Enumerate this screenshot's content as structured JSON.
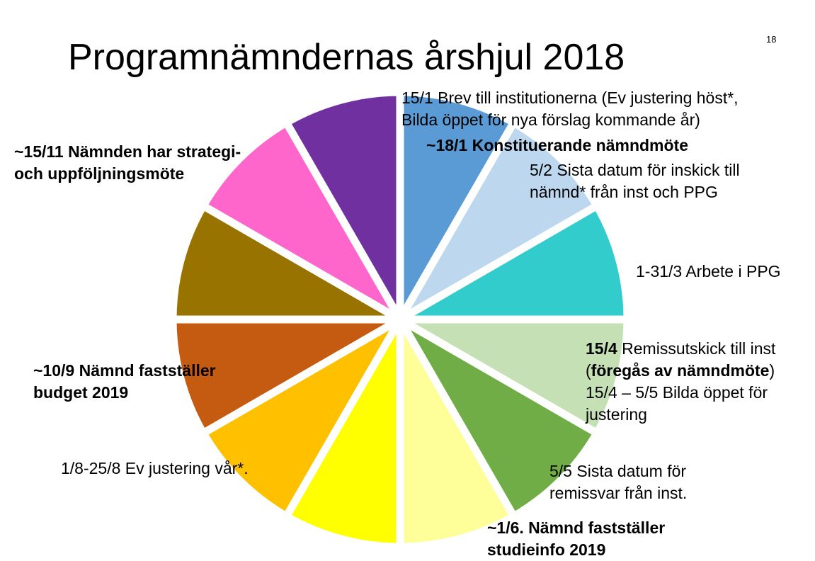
{
  "page_number": "18",
  "title": "Programnämndernas årshjul 2018",
  "wheel": {
    "gap_color": "#ffffff",
    "segments": [
      {
        "name": "segment-jan",
        "color": "#5b9bd5"
      },
      {
        "name": "segment-feb",
        "color": "#bdd7ee"
      },
      {
        "name": "segment-mar",
        "color": "#33cccc"
      },
      {
        "name": "segment-apr",
        "color": "#c5e0b4"
      },
      {
        "name": "segment-may",
        "color": "#70ad47"
      },
      {
        "name": "segment-jun",
        "color": "#ffff99"
      },
      {
        "name": "segment-jul",
        "color": "#ffff00"
      },
      {
        "name": "segment-aug",
        "color": "#ffc000"
      },
      {
        "name": "segment-sep",
        "color": "#c55a11"
      },
      {
        "name": "segment-oct",
        "color": "#997300"
      },
      {
        "name": "segment-nov",
        "color": "#ff66cc"
      },
      {
        "name": "segment-dec",
        "color": "#7030a0"
      }
    ]
  },
  "labels": {
    "jan_letter_1": "15/1 Brev till institutionerna (Ev justering höst*,",
    "jan_letter_2": "Bilda öppet för nya förslag kommande år)",
    "jan_meeting": "~18/1 Konstituerande nämndmöte",
    "feb_1": "5/2 Sista datum för inskick till",
    "feb_2": "nämnd* från inst och PPG",
    "mar": "1-31/3 Arbete i PPG",
    "apr_date": "15/4",
    "apr_text": " Remissutskick till inst",
    "apr_paren_open": "(",
    "apr_bold": "föregås av nämndmöte",
    "apr_paren_close": ")",
    "apr_open_1": "15/4 – 5/5 Bilda öppet för",
    "apr_open_2": "justering",
    "may_1": "5/5 Sista datum för",
    "may_2": "remissvar från inst.",
    "jun_1": "~1/6. Nämnd fastställer",
    "jun_2": "studieinfo 2019",
    "aug": "1/8-25/8 Ev justering vår*.",
    "sep_1": "~10/9 Nämnd fastställer",
    "sep_2": "budget 2019",
    "nov_1": "~15/11 Nämnden har strategi-",
    "nov_2": "och uppföljningsmöte"
  }
}
